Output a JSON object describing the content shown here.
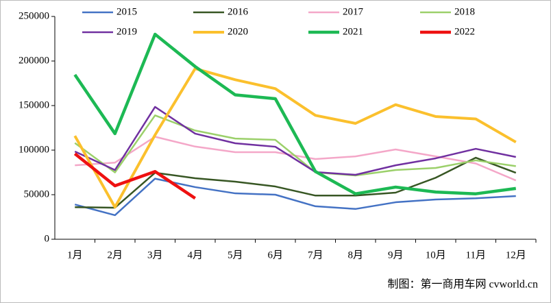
{
  "chart_data": {
    "type": "line",
    "categories": [
      "1月",
      "2月",
      "3月",
      "4月",
      "5月",
      "6月",
      "7月",
      "8月",
      "9月",
      "10月",
      "11月",
      "12月"
    ],
    "series": [
      {
        "name": "2015",
        "color": "#4472c4",
        "values": [
          39000,
          27000,
          68000,
          58500,
          51500,
          50000,
          37000,
          34000,
          41500,
          44600,
          46000,
          48500
        ]
      },
      {
        "name": "2016",
        "color": "#375623",
        "values": [
          36000,
          35400,
          74600,
          68500,
          64600,
          59200,
          49000,
          49000,
          52300,
          69000,
          91500,
          74600
        ]
      },
      {
        "name": "2017",
        "color": "#f4a7c8",
        "values": [
          83000,
          86000,
          115000,
          104000,
          97700,
          97700,
          90000,
          93000,
          100800,
          93000,
          85000,
          66000
        ]
      },
      {
        "name": "2018",
        "color": "#9bd06a",
        "values": [
          108000,
          75000,
          139000,
          122000,
          113000,
          111500,
          75000,
          71500,
          77700,
          80000,
          88500,
          82000
        ]
      },
      {
        "name": "2019",
        "color": "#7030a0",
        "values": [
          98500,
          77700,
          148500,
          118500,
          107700,
          103800,
          75400,
          72300,
          83000,
          90800,
          101500,
          92300
        ]
      },
      {
        "name": "2020",
        "color": "#fbc02d",
        "values": [
          116000,
          36000,
          117000,
          191500,
          179000,
          169000,
          139000,
          130000,
          151000,
          137700,
          135000,
          109000
        ]
      },
      {
        "name": "2021",
        "color": "#1db954",
        "values": [
          184600,
          118500,
          230000,
          193800,
          162000,
          157700,
          76000,
          51000,
          58500,
          53000,
          51000,
          57000
        ]
      },
      {
        "name": "2022",
        "color": "#ee1111",
        "values": [
          96000,
          60000,
          76000,
          46000,
          null,
          null,
          null,
          null,
          null,
          null,
          null,
          null
        ]
      }
    ],
    "ylim": [
      0,
      250000
    ],
    "yticks": [
      0,
      50000,
      100000,
      150000,
      200000,
      250000
    ],
    "grid": false,
    "source": "制图：第一商用车网 cvworld.cn"
  }
}
